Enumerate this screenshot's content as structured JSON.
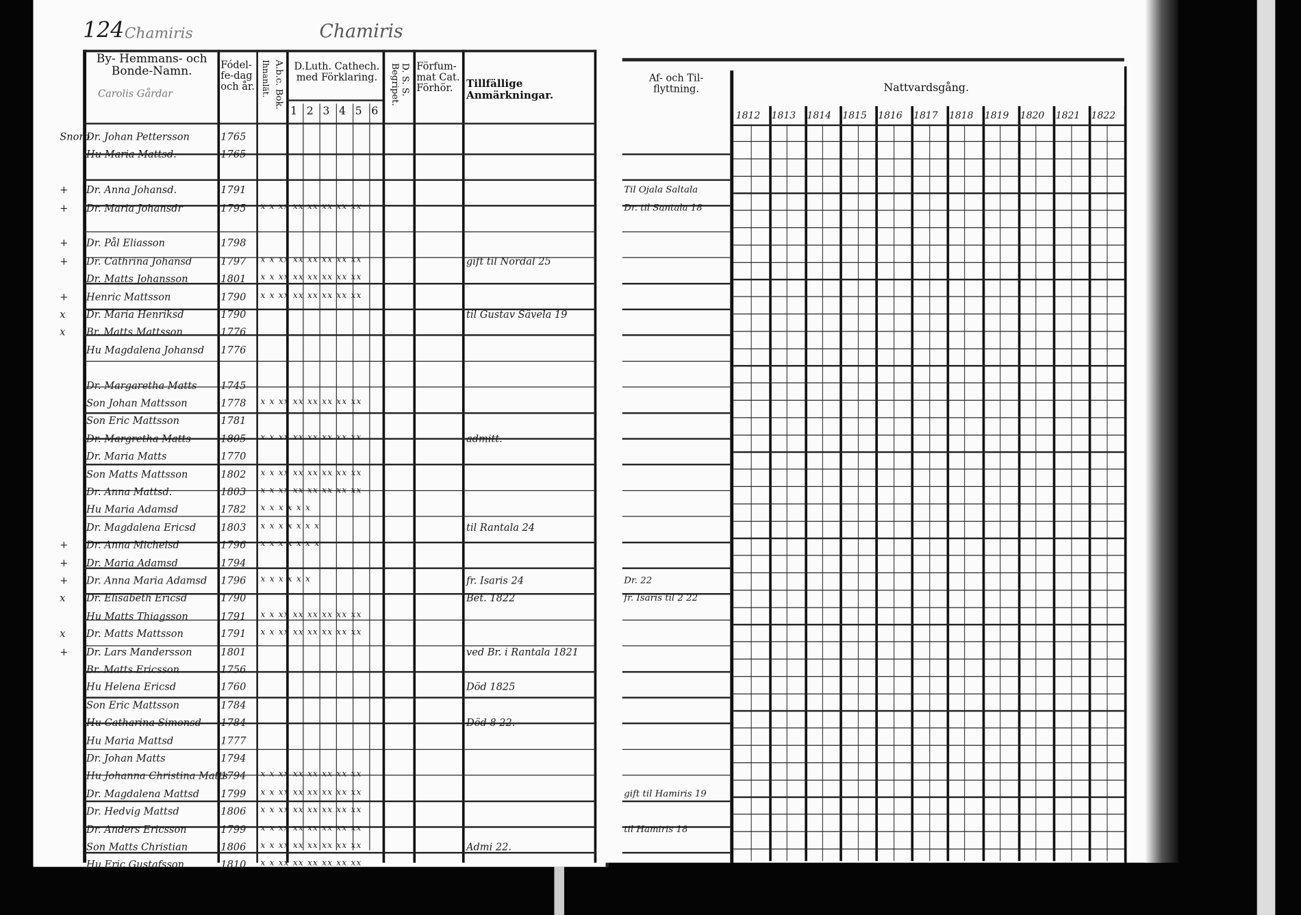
{
  "page_number": "124",
  "running_head_left": "Chamiris",
  "running_head_center": "Chamiris",
  "left_page": {
    "columns": {
      "name": "By- Hemmans- och Bonde-Namn.",
      "birth": "Fódel-fe-dag och år.",
      "inoculated": "Ihnanlät.",
      "abc_book": "A.b.c. Bok.",
      "catechism": "D.Luth. Cathech. med Förklaring.",
      "catechism_sub": [
        "1",
        "2",
        "3",
        "4",
        "5",
        "6"
      ],
      "dss": "D. S. S. Begripet.",
      "missed": "Förfum-mat Cat. Förhör.",
      "remarks": "Tillfällige Anmärkningar."
    },
    "village_note": "Carolis Gårdar",
    "entries": [
      {
        "mark": "Snorb",
        "name": "Dr. Johan Pettersson",
        "year": "1765",
        "marks": "",
        "remark": ""
      },
      {
        "mark": "",
        "name": "Hu Maria Mattsd.",
        "year": "1765",
        "marks": "",
        "remark": ""
      },
      {
        "mark": "",
        "name": "",
        "year": "",
        "marks": "",
        "remark": ""
      },
      {
        "mark": "+",
        "name": "Dr. Anna Johansd.",
        "year": "1791",
        "marks": "",
        "remark": ""
      },
      {
        "mark": "+",
        "name": "Dr. Maria Johansdr",
        "year": "1795",
        "marks": "x x  xx xx xx xx xx xx",
        "remark": ""
      },
      {
        "mark": "",
        "name": "",
        "year": "",
        "marks": "",
        "remark": ""
      },
      {
        "mark": "+",
        "name": "Dr. Pål Eliasson",
        "year": "1798",
        "marks": "",
        "remark": ""
      },
      {
        "mark": "+",
        "name": "Dr. Cathrina Johansd",
        "year": "1797",
        "marks": "x x  xx xx xx xx xx xx",
        "remark": "gift til Nordal 25"
      },
      {
        "mark": "",
        "name": "Dr. Matts Johansson",
        "year": "1801",
        "marks": "x x  xx xx xx xx xx xx",
        "remark": ""
      },
      {
        "mark": "+",
        "name": "Henric Mattsson",
        "year": "1790",
        "marks": "x x  xx xx xx xx xx xx",
        "remark": ""
      },
      {
        "mark": "x",
        "name": "Dr. Maria Henriksd",
        "year": "1790",
        "marks": "",
        "remark": "til Gustav Sävela 19"
      },
      {
        "mark": "x",
        "name": "Br. Matts Mattsson",
        "year": "1776",
        "marks": "",
        "remark": ""
      },
      {
        "mark": "",
        "name": "Hu Magdalena Johansd",
        "year": "1776",
        "marks": "",
        "remark": ""
      },
      {
        "mark": "",
        "name": "",
        "year": "",
        "marks": "",
        "remark": ""
      },
      {
        "mark": "",
        "name": "Dr. Margaretha Matts",
        "year": "1745",
        "marks": "",
        "remark": ""
      },
      {
        "mark": "",
        "name": "Son Johan Mattsson",
        "year": "1778",
        "marks": "x x  xx xx xx xx xx xx",
        "remark": ""
      },
      {
        "mark": "",
        "name": "Son Eric Mattsson",
        "year": "1781",
        "marks": "",
        "remark": ""
      },
      {
        "mark": "",
        "name": "Dr. Margretha Matts",
        "year": "1805",
        "marks": "x x  xx xx xx xx xx xx",
        "remark": "admitt."
      },
      {
        "mark": "",
        "name": "Dr. Maria Matts",
        "year": "1770",
        "marks": "",
        "remark": ""
      },
      {
        "mark": "",
        "name": "Son Matts Mattsson",
        "year": "1802",
        "marks": "x x  xx xx xx xx xx xx",
        "remark": ""
      },
      {
        "mark": "",
        "name": "Dr. Anna Mattsd.",
        "year": "1803",
        "marks": "x x  xx xx xx xx xx xx",
        "remark": ""
      },
      {
        "mark": "",
        "name": "Hu Maria Adamsd",
        "year": "1782",
        "marks": "x    x  x  x  x  x",
        "remark": ""
      },
      {
        "mark": "",
        "name": "Dr. Magdalena Ericsd",
        "year": "1803",
        "marks": "x x  x  x  x  x  x",
        "remark": "til Rantala 24"
      },
      {
        "mark": "+",
        "name": "Dr. Anna Michelsd",
        "year": "1796",
        "marks": "x x  x  x  x  x  x",
        "remark": ""
      },
      {
        "mark": "+",
        "name": "Dr. Maria Adamsd",
        "year": "1794",
        "marks": "",
        "remark": ""
      },
      {
        "mark": "+",
        "name": "Dr. Anna Maria Adamsd",
        "year": "1796",
        "marks": "x    x  x  x  x  x",
        "remark": "fr. Isaris 24"
      },
      {
        "mark": "x",
        "name": "Dr. Elisabeth Ericsd",
        "year": "1790",
        "marks": "",
        "remark": "Bet. 1822"
      },
      {
        "mark": "",
        "name": "Hu Matts Thiagsson",
        "year": "1791",
        "marks": "x x  xx xx xx xx xx xx",
        "remark": ""
      },
      {
        "mark": "x",
        "name": "Dr. Matts Mattsson",
        "year": "1791",
        "marks": "x x  xx xx xx xx xx xx",
        "remark": ""
      },
      {
        "mark": "+",
        "name": "Dr. Lars Mandersson",
        "year": "1801",
        "marks": "",
        "remark": "ved Br. i Rantala 1821"
      },
      {
        "mark": "",
        "name": "Br. Matts Ericsson",
        "year": "1756",
        "marks": "",
        "remark": ""
      },
      {
        "mark": "",
        "name": "Hu Helena Ericsd",
        "year": "1760",
        "marks": "",
        "remark": "Död 1825"
      },
      {
        "mark": "",
        "name": "Son Eric Mattsson",
        "year": "1784",
        "marks": "",
        "remark": ""
      },
      {
        "mark": "",
        "name": "Hu Catharina Simonsd",
        "year": "1784",
        "marks": "",
        "remark": "Död 8 22."
      },
      {
        "mark": "",
        "name": "Hu Maria Mattsd",
        "year": "1777",
        "marks": "",
        "remark": ""
      },
      {
        "mark": "",
        "name": "Dr. Johan Matts",
        "year": "1794",
        "marks": "",
        "remark": ""
      },
      {
        "mark": "",
        "name": "Hu Johanna Christina Matts",
        "year": "1794",
        "marks": "x x  xx xx xx xx xx xx",
        "remark": ""
      },
      {
        "mark": "",
        "name": "Dr. Magdalena Mattsd",
        "year": "1799",
        "marks": "x x  xx xx xx xx xx xx",
        "remark": ""
      },
      {
        "mark": "",
        "name": "Dr. Hedvig Mattsd",
        "year": "1806",
        "marks": "x x  xx xx xx xx xx xx",
        "remark": ""
      },
      {
        "mark": "",
        "name": "Dr. Anders Ericsson",
        "year": "1799",
        "marks": "x x  xx xx xx xx xx xx",
        "remark": ""
      },
      {
        "mark": "",
        "name": "Son Matts Christian",
        "year": "1806",
        "marks": "x x  xx xx xx xx xx xx",
        "remark": "Admi 22."
      },
      {
        "mark": "",
        "name": "Hu Eric Gustafsson",
        "year": "1810",
        "marks": "x x  xx xx xx xx xx xx",
        "remark": ""
      }
    ]
  },
  "right_page": {
    "columns": {
      "moves": "Af- och Til-flyttning.",
      "communion": "Nattvardsgång."
    },
    "years": [
      "1812",
      "1813",
      "1814",
      "1815",
      "1816",
      "1817",
      "1818",
      "1819",
      "1820",
      "1821",
      "1822"
    ],
    "move_notes": [
      {
        "row": 3,
        "text": "Til Ojala Saltala"
      },
      {
        "row": 4,
        "text": "Dr. til Santala 18"
      },
      {
        "row": 25,
        "text": "Dr. 22"
      },
      {
        "row": 26,
        "text": "fr. Isaris til 2 22"
      },
      {
        "row": 37,
        "text": "gift til Hamiris 19"
      },
      {
        "row": 39,
        "text": "til Hamiris 18"
      }
    ]
  }
}
